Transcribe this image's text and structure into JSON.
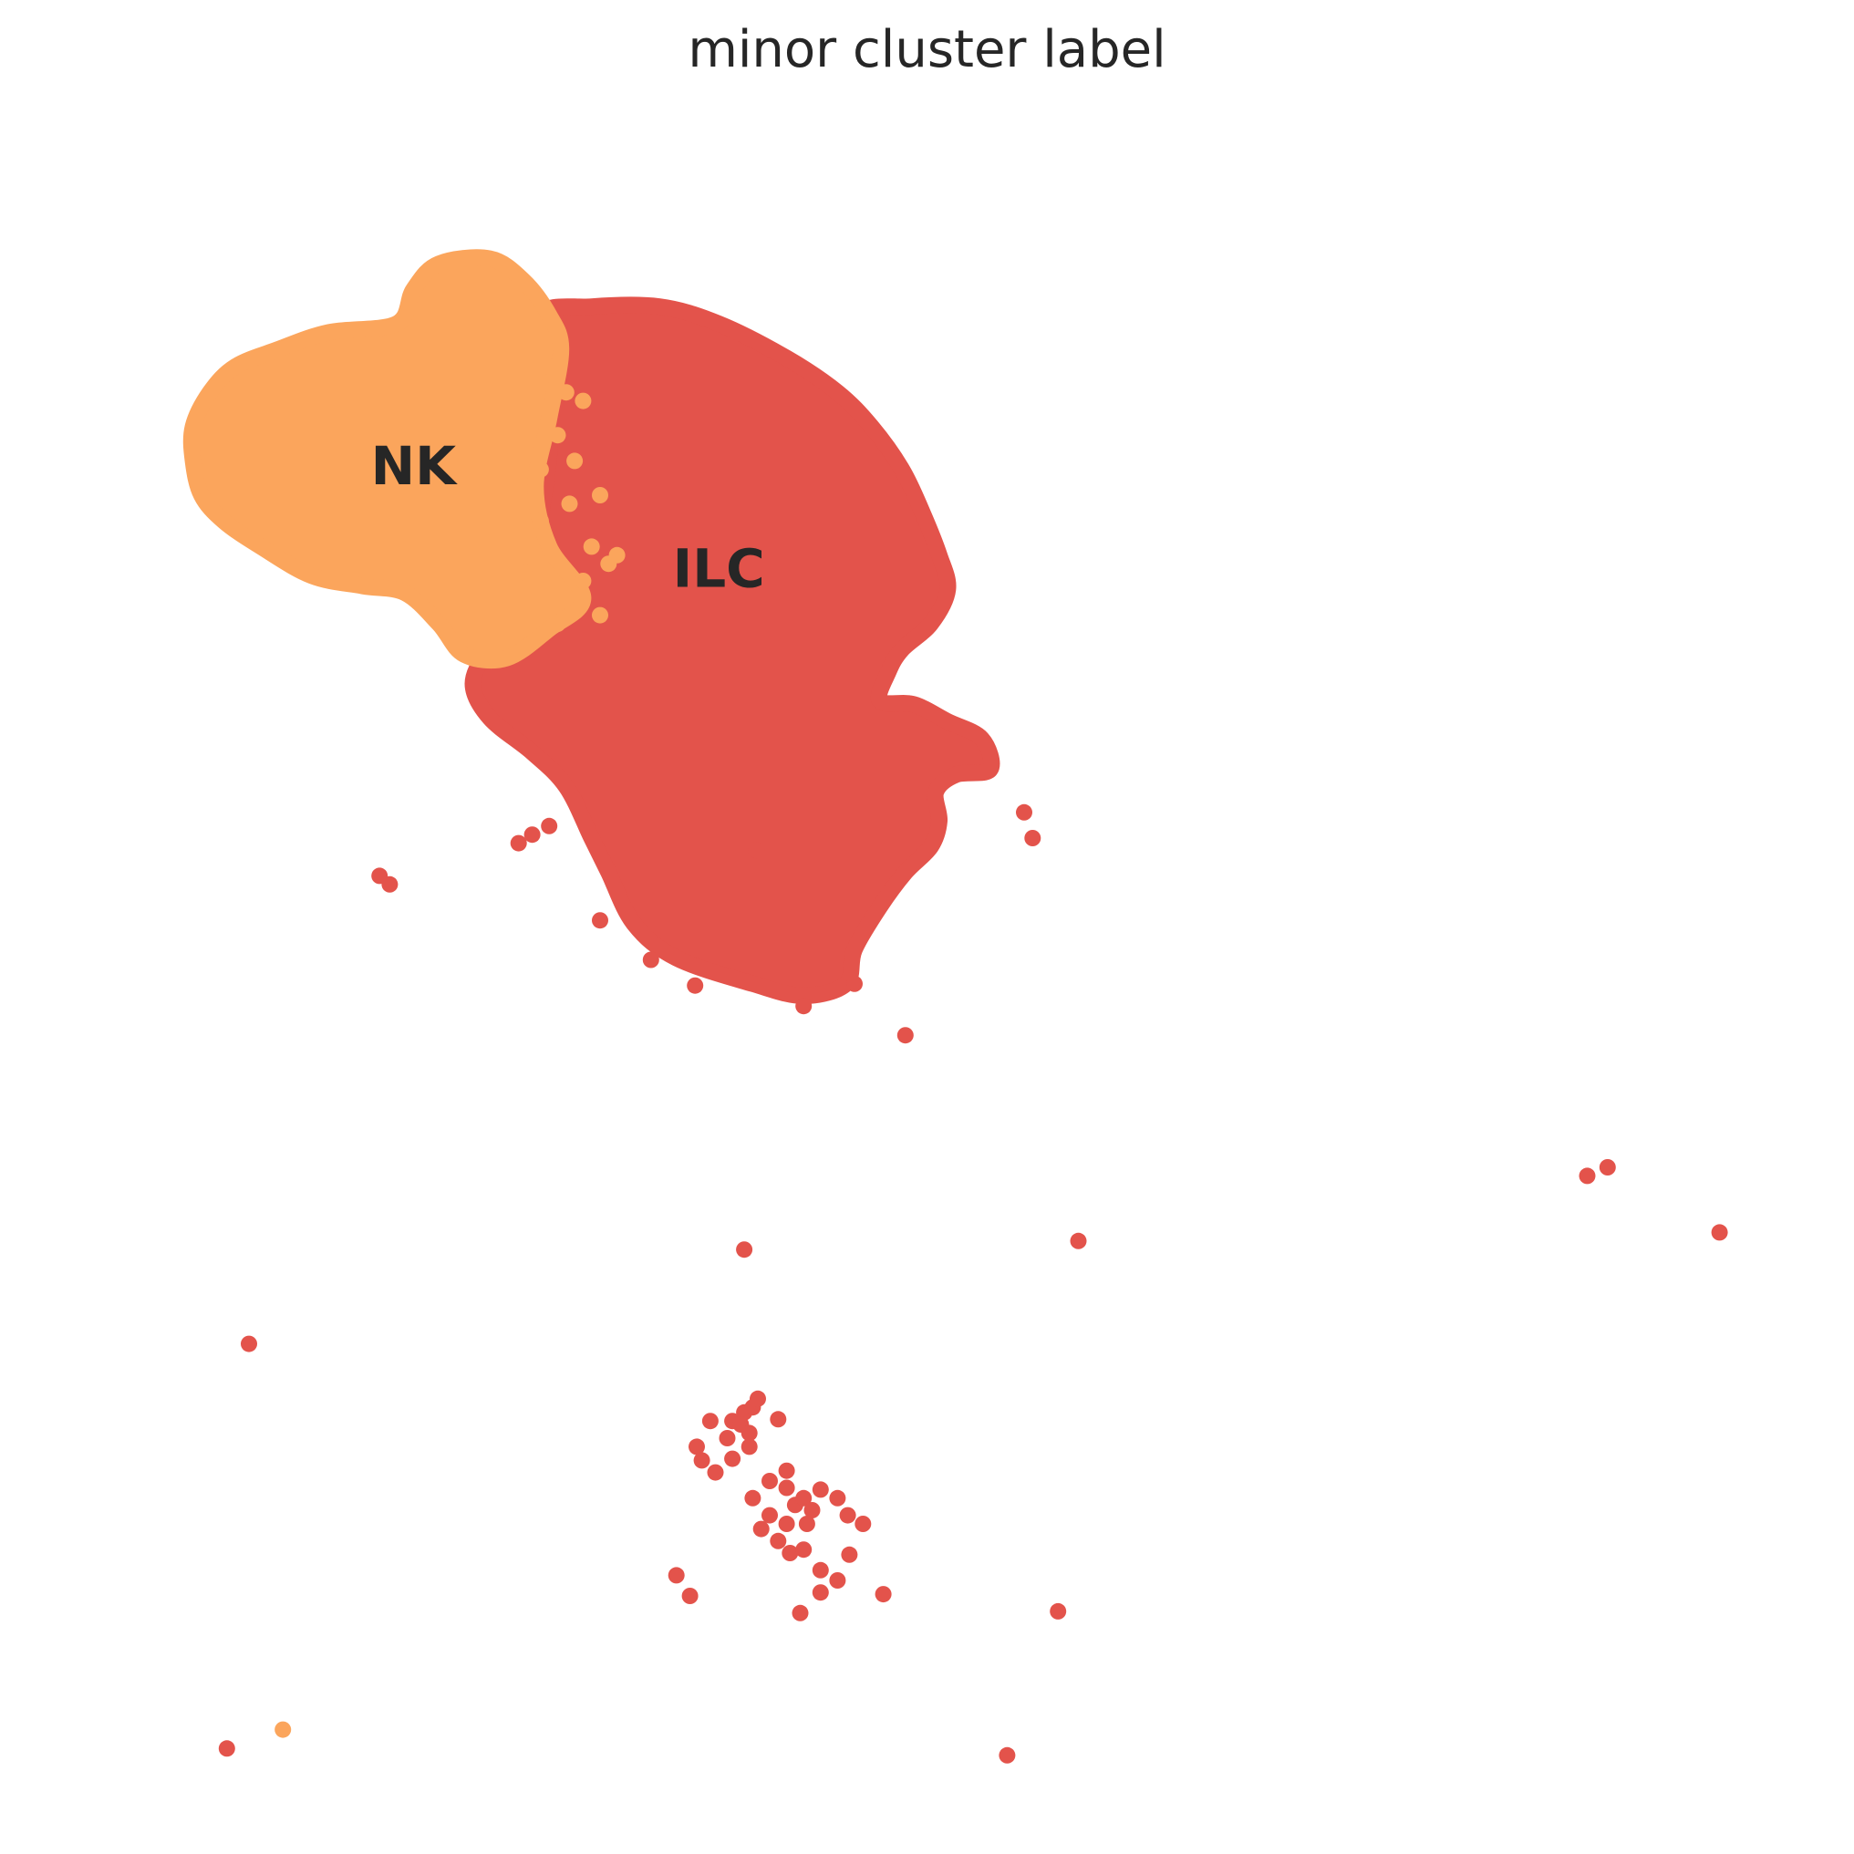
{
  "chart_data": {
    "type": "scatter",
    "title": "minor cluster label",
    "xlabel": "",
    "ylabel": "",
    "axes_visible": false,
    "grid": false,
    "legend": "none",
    "colors": {
      "NK": "#fba55c",
      "ILC": "#e3534b"
    },
    "labels_on_data": [
      {
        "text": "NK",
        "x": 0.19,
        "y": 0.79
      },
      {
        "text": "ILC",
        "x": 0.37,
        "y": 0.73
      }
    ],
    "xlim": [
      0,
      1
    ],
    "ylim": [
      0,
      1
    ],
    "series": [
      {
        "name": "NK",
        "blob_outline": [
          [
            0.06,
            0.795
          ],
          [
            0.06,
            0.815
          ],
          [
            0.07,
            0.835
          ],
          [
            0.085,
            0.85
          ],
          [
            0.11,
            0.86
          ],
          [
            0.14,
            0.87
          ],
          [
            0.18,
            0.875
          ],
          [
            0.19,
            0.895
          ],
          [
            0.205,
            0.91
          ],
          [
            0.235,
            0.913
          ],
          [
            0.255,
            0.9
          ],
          [
            0.27,
            0.88
          ],
          [
            0.277,
            0.86
          ],
          [
            0.27,
            0.82
          ],
          [
            0.262,
            0.78
          ],
          [
            0.27,
            0.745
          ],
          [
            0.29,
            0.715
          ],
          [
            0.27,
            0.697
          ],
          [
            0.245,
            0.68
          ],
          [
            0.22,
            0.682
          ],
          [
            0.205,
            0.7
          ],
          [
            0.185,
            0.718
          ],
          [
            0.16,
            0.722
          ],
          [
            0.13,
            0.728
          ],
          [
            0.1,
            0.745
          ],
          [
            0.078,
            0.76
          ],
          [
            0.065,
            0.775
          ]
        ],
        "points": [
          [
            0.113,
            0.055
          ],
          [
            0.27,
            0.85
          ],
          [
            0.28,
            0.835
          ],
          [
            0.275,
            0.81
          ],
          [
            0.285,
            0.795
          ],
          [
            0.282,
            0.77
          ],
          [
            0.3,
            0.775
          ],
          [
            0.295,
            0.745
          ],
          [
            0.305,
            0.735
          ],
          [
            0.29,
            0.725
          ],
          [
            0.275,
            0.7
          ],
          [
            0.3,
            0.705
          ],
          [
            0.265,
            0.76
          ],
          [
            0.255,
            0.73
          ],
          [
            0.29,
            0.83
          ],
          [
            0.265,
            0.79
          ],
          [
            0.31,
            0.74
          ]
        ]
      },
      {
        "name": "ILC",
        "blob_outline": [
          [
            0.265,
            0.88
          ],
          [
            0.295,
            0.885
          ],
          [
            0.335,
            0.885
          ],
          [
            0.37,
            0.875
          ],
          [
            0.41,
            0.855
          ],
          [
            0.44,
            0.835
          ],
          [
            0.46,
            0.815
          ],
          [
            0.478,
            0.79
          ],
          [
            0.49,
            0.765
          ],
          [
            0.5,
            0.74
          ],
          [
            0.505,
            0.72
          ],
          [
            0.495,
            0.7
          ],
          [
            0.478,
            0.685
          ],
          [
            0.47,
            0.672
          ],
          [
            0.465,
            0.655
          ],
          [
            0.485,
            0.653
          ],
          [
            0.505,
            0.643
          ],
          [
            0.525,
            0.633
          ],
          [
            0.53,
            0.615
          ],
          [
            0.51,
            0.612
          ],
          [
            0.498,
            0.602
          ],
          [
            0.5,
            0.585
          ],
          [
            0.495,
            0.57
          ],
          [
            0.48,
            0.555
          ],
          [
            0.465,
            0.535
          ],
          [
            0.45,
            0.51
          ],
          [
            0.445,
            0.49
          ],
          [
            0.42,
            0.483
          ],
          [
            0.39,
            0.49
          ],
          [
            0.345,
            0.505
          ],
          [
            0.32,
            0.525
          ],
          [
            0.305,
            0.555
          ],
          [
            0.295,
            0.575
          ],
          [
            0.28,
            0.605
          ],
          [
            0.26,
            0.625
          ],
          [
            0.235,
            0.645
          ],
          [
            0.225,
            0.665
          ],
          [
            0.235,
            0.685
          ],
          [
            0.255,
            0.7
          ],
          [
            0.265,
            0.72
          ],
          [
            0.265,
            0.76
          ],
          [
            0.27,
            0.8
          ],
          [
            0.268,
            0.84
          ]
        ],
        "points": [
          [
            0.08,
            0.044
          ],
          [
            0.093,
            0.28
          ],
          [
            0.17,
            0.553
          ],
          [
            0.176,
            0.548
          ],
          [
            0.252,
            0.572
          ],
          [
            0.26,
            0.577
          ],
          [
            0.27,
            0.582
          ],
          [
            0.3,
            0.527
          ],
          [
            0.392,
            0.568
          ],
          [
            0.385,
            0.335
          ],
          [
            0.378,
            0.235
          ],
          [
            0.365,
            0.235
          ],
          [
            0.375,
            0.225
          ],
          [
            0.357,
            0.22
          ],
          [
            0.36,
            0.212
          ],
          [
            0.368,
            0.205
          ],
          [
            0.385,
            0.24
          ],
          [
            0.383,
            0.233
          ],
          [
            0.388,
            0.228
          ],
          [
            0.39,
            0.243
          ],
          [
            0.393,
            0.248
          ],
          [
            0.405,
            0.236
          ],
          [
            0.388,
            0.22
          ],
          [
            0.378,
            0.213
          ],
          [
            0.4,
            0.2
          ],
          [
            0.41,
            0.206
          ],
          [
            0.415,
            0.186
          ],
          [
            0.41,
            0.175
          ],
          [
            0.42,
            0.19
          ],
          [
            0.425,
            0.183
          ],
          [
            0.43,
            0.195
          ],
          [
            0.395,
            0.172
          ],
          [
            0.405,
            0.165
          ],
          [
            0.412,
            0.158
          ],
          [
            0.422,
            0.175
          ],
          [
            0.44,
            0.19
          ],
          [
            0.446,
            0.18
          ],
          [
            0.42,
            0.16
          ],
          [
            0.43,
            0.148
          ],
          [
            0.44,
            0.142
          ],
          [
            0.447,
            0.157
          ],
          [
            0.455,
            0.175
          ],
          [
            0.43,
            0.135
          ],
          [
            0.345,
            0.145
          ],
          [
            0.353,
            0.133
          ],
          [
            0.418,
            0.123
          ],
          [
            0.467,
            0.134
          ],
          [
            0.4,
            0.18
          ],
          [
            0.39,
            0.19
          ],
          [
            0.41,
            0.196
          ],
          [
            0.57,
            0.124
          ],
          [
            0.582,
            0.34
          ],
          [
            0.882,
            0.378
          ],
          [
            0.894,
            0.383
          ],
          [
            0.96,
            0.345
          ],
          [
            0.54,
            0.04
          ],
          [
            0.48,
            0.46
          ],
          [
            0.356,
            0.489
          ],
          [
            0.33,
            0.504
          ],
          [
            0.42,
            0.477
          ],
          [
            0.45,
            0.49
          ],
          [
            0.55,
            0.59
          ],
          [
            0.555,
            0.575
          ]
        ]
      }
    ]
  }
}
